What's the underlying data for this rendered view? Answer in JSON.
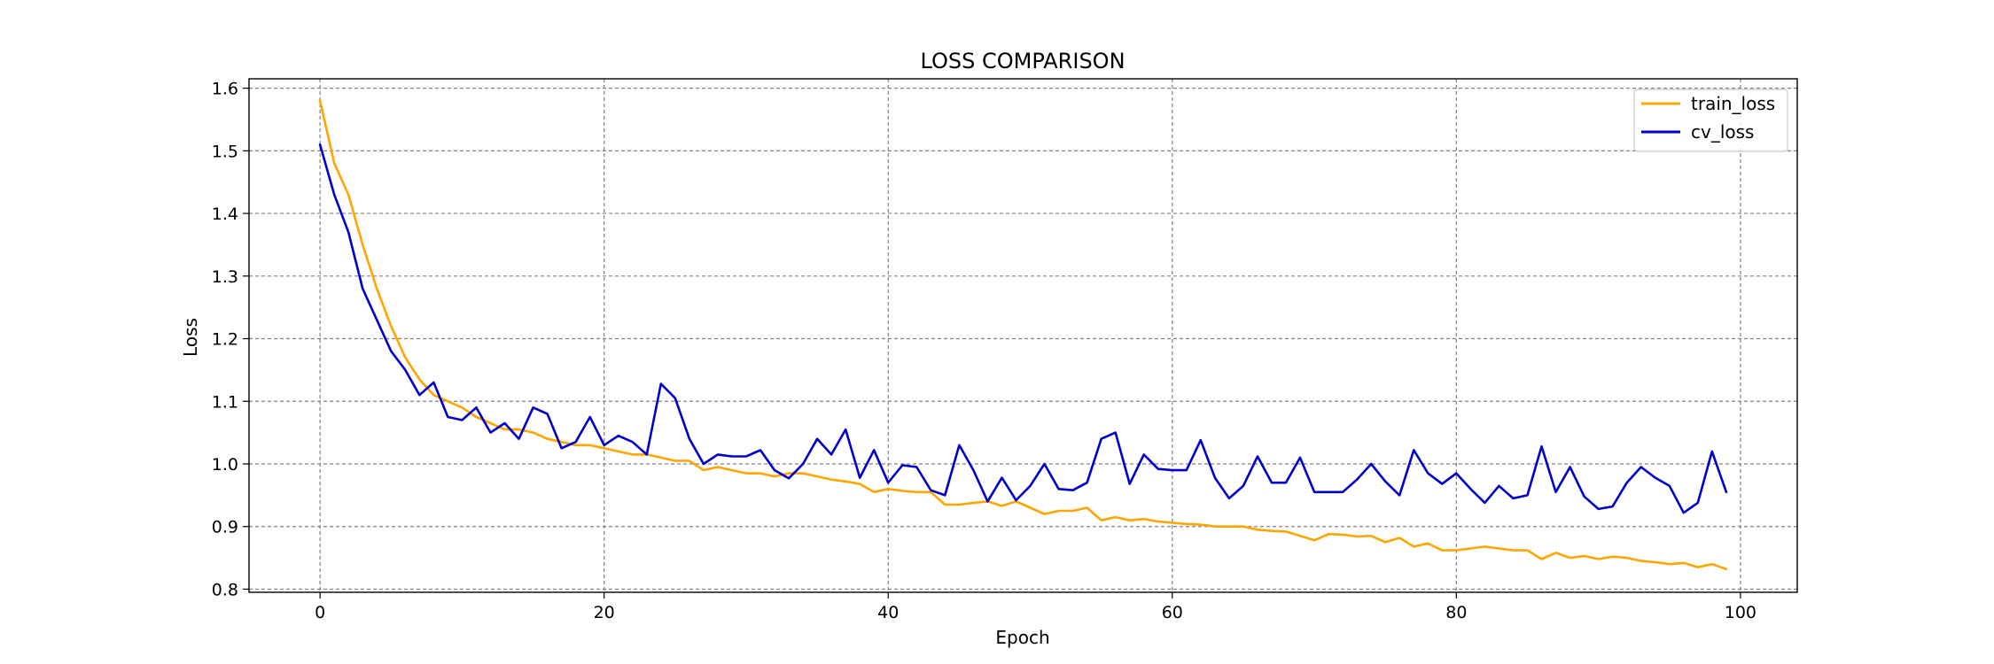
{
  "chart_data": {
    "type": "line",
    "title": "LOSS COMPARISON",
    "xlabel": "Epoch",
    "ylabel": "Loss",
    "xlim": [
      -5,
      104
    ],
    "ylim": [
      0.795,
      1.615
    ],
    "xticks": [
      0,
      20,
      40,
      60,
      80,
      100
    ],
    "yticks": [
      0.8,
      0.9,
      1.0,
      1.1,
      1.2,
      1.3,
      1.4,
      1.5,
      1.6
    ],
    "xtick_labels": [
      "0",
      "20",
      "40",
      "60",
      "80",
      "100"
    ],
    "ytick_labels": [
      "0.8",
      "0.9",
      "1.0",
      "1.1",
      "1.2",
      "1.3",
      "1.4",
      "1.5",
      "1.6"
    ],
    "grid": true,
    "legend_position": "top-right",
    "series": [
      {
        "name": "train_loss",
        "color": "#ffa500",
        "x": [
          0,
          1,
          2,
          3,
          4,
          5,
          6,
          7,
          8,
          9,
          10,
          11,
          12,
          13,
          14,
          15,
          16,
          17,
          18,
          19,
          20,
          21,
          22,
          23,
          24,
          25,
          26,
          27,
          28,
          29,
          30,
          31,
          32,
          33,
          34,
          35,
          36,
          37,
          38,
          39,
          40,
          41,
          42,
          43,
          44,
          45,
          46,
          47,
          48,
          49,
          50,
          51,
          52,
          53,
          54,
          55,
          56,
          57,
          58,
          59,
          60,
          61,
          62,
          63,
          64,
          65,
          66,
          67,
          68,
          69,
          70,
          71,
          72,
          73,
          74,
          75,
          76,
          77,
          78,
          79,
          80,
          81,
          82,
          83,
          84,
          85,
          86,
          87,
          88,
          89,
          90,
          91,
          92,
          93,
          94,
          95,
          96,
          97,
          98,
          99
        ],
        "values": [
          1.58,
          1.48,
          1.43,
          1.35,
          1.28,
          1.22,
          1.17,
          1.135,
          1.11,
          1.1,
          1.09,
          1.075,
          1.065,
          1.055,
          1.055,
          1.05,
          1.04,
          1.035,
          1.03,
          1.03,
          1.025,
          1.02,
          1.015,
          1.015,
          1.01,
          1.005,
          1.005,
          0.99,
          0.995,
          0.99,
          0.985,
          0.985,
          0.98,
          0.985,
          0.985,
          0.98,
          0.975,
          0.972,
          0.968,
          0.955,
          0.96,
          0.957,
          0.955,
          0.955,
          0.935,
          0.935,
          0.938,
          0.94,
          0.933,
          0.94,
          0.93,
          0.92,
          0.925,
          0.925,
          0.93,
          0.91,
          0.915,
          0.91,
          0.912,
          0.908,
          0.906,
          0.904,
          0.903,
          0.9,
          0.9,
          0.9,
          0.895,
          0.893,
          0.892,
          0.885,
          0.878,
          0.888,
          0.887,
          0.884,
          0.885,
          0.875,
          0.882,
          0.868,
          0.873,
          0.862,
          0.862,
          0.865,
          0.868,
          0.865,
          0.862,
          0.862,
          0.848,
          0.858,
          0.85,
          0.853,
          0.848,
          0.852,
          0.85,
          0.845,
          0.843,
          0.84,
          0.842,
          0.835,
          0.84,
          0.832
        ]
      },
      {
        "name": "cv_loss",
        "color": "#0000cd",
        "x": [
          0,
          1,
          2,
          3,
          4,
          5,
          6,
          7,
          8,
          9,
          10,
          11,
          12,
          13,
          14,
          15,
          16,
          17,
          18,
          19,
          20,
          21,
          22,
          23,
          24,
          25,
          26,
          27,
          28,
          29,
          30,
          31,
          32,
          33,
          34,
          35,
          36,
          37,
          38,
          39,
          40,
          41,
          42,
          43,
          44,
          45,
          46,
          47,
          48,
          49,
          50,
          51,
          52,
          53,
          54,
          55,
          56,
          57,
          58,
          59,
          60,
          61,
          62,
          63,
          64,
          65,
          66,
          67,
          68,
          69,
          70,
          71,
          72,
          73,
          74,
          75,
          76,
          77,
          78,
          79,
          80,
          81,
          82,
          83,
          84,
          85,
          86,
          87,
          88,
          89,
          90,
          91,
          92,
          93,
          94,
          95,
          96,
          97,
          98,
          99
        ],
        "values": [
          1.51,
          1.43,
          1.37,
          1.28,
          1.23,
          1.18,
          1.15,
          1.11,
          1.13,
          1.075,
          1.07,
          1.09,
          1.05,
          1.065,
          1.04,
          1.09,
          1.08,
          1.025,
          1.035,
          1.075,
          1.03,
          1.045,
          1.035,
          1.015,
          1.128,
          1.105,
          1.04,
          1.0,
          1.015,
          1.012,
          1.012,
          1.022,
          0.99,
          0.977,
          1.0,
          1.04,
          1.015,
          1.055,
          0.978,
          1.022,
          0.97,
          0.998,
          0.995,
          0.958,
          0.95,
          1.03,
          0.99,
          0.94,
          0.978,
          0.942,
          0.965,
          1.0,
          0.96,
          0.958,
          0.97,
          1.04,
          1.05,
          0.968,
          1.015,
          0.992,
          0.99,
          0.99,
          1.038,
          0.978,
          0.945,
          0.965,
          1.012,
          0.97,
          0.97,
          1.01,
          0.955,
          0.955,
          0.955,
          0.975,
          1.0,
          0.972,
          0.95,
          1.022,
          0.985,
          0.968,
          0.985,
          0.96,
          0.938,
          0.965,
          0.945,
          0.95,
          1.028,
          0.955,
          0.995,
          0.948,
          0.928,
          0.932,
          0.97,
          0.995,
          0.978,
          0.965,
          0.922,
          0.938,
          1.02,
          0.955
        ]
      }
    ]
  }
}
